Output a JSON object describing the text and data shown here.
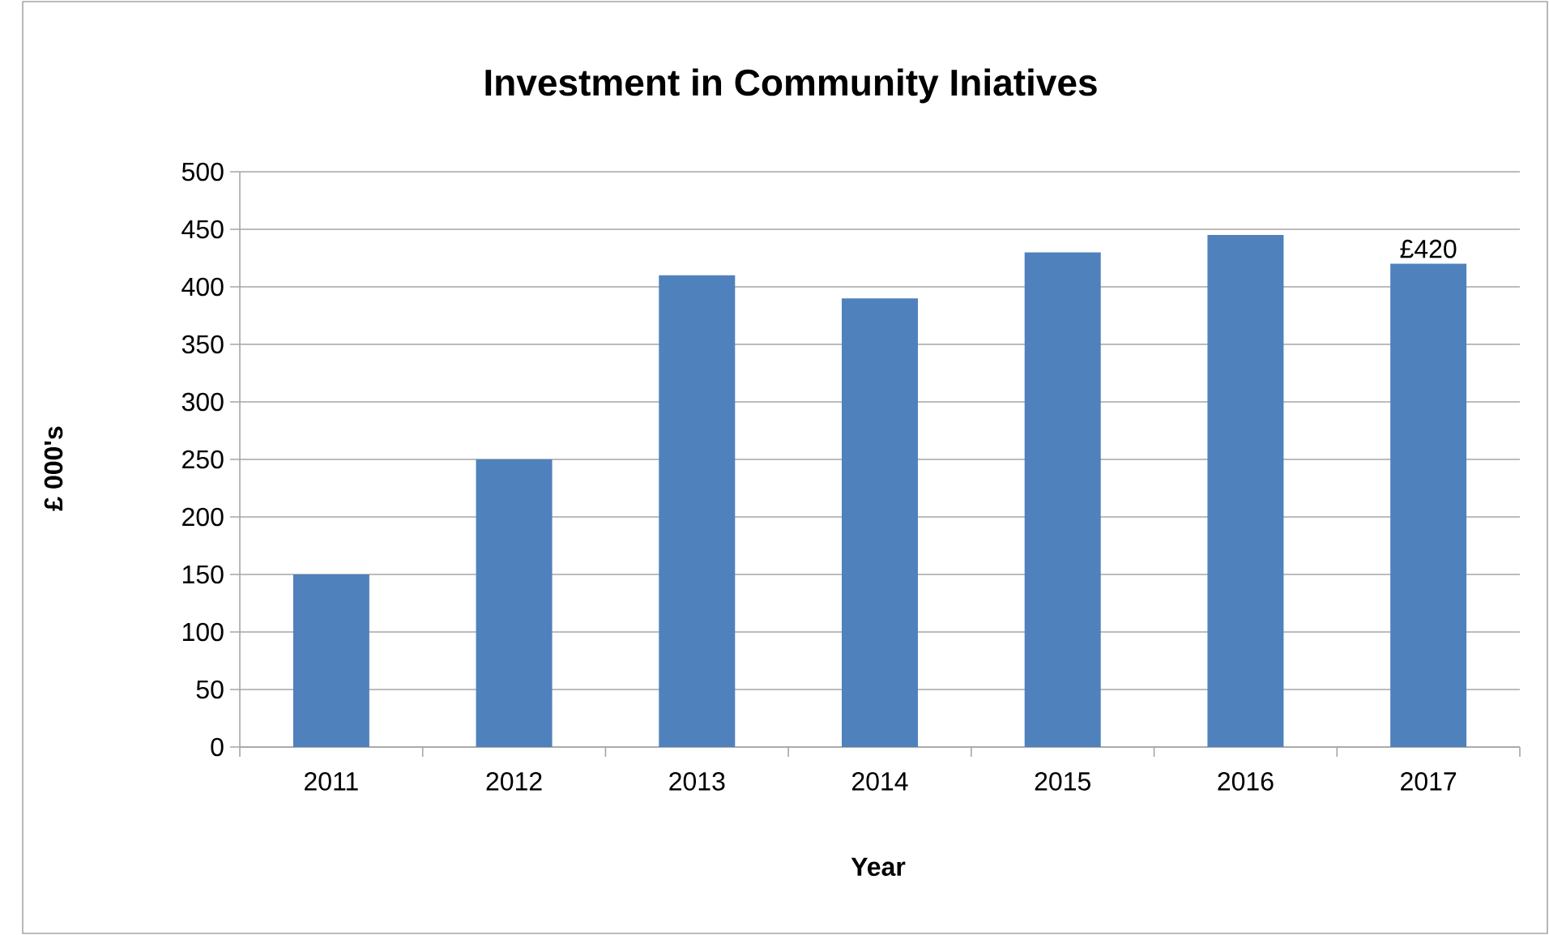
{
  "chart_data": {
    "type": "bar",
    "title": "Investment in Community Iniatives",
    "xlabel": "Year",
    "ylabel": "£ 000's",
    "categories": [
      "2011",
      "2012",
      "2013",
      "2014",
      "2015",
      "2016",
      "2017"
    ],
    "values": [
      150,
      250,
      410,
      390,
      430,
      445,
      420
    ],
    "value_labels": [
      null,
      null,
      null,
      null,
      null,
      null,
      "£420"
    ],
    "color": "#4f81bd",
    "ylim": [
      0,
      500
    ],
    "yticks": [
      0,
      50,
      100,
      150,
      200,
      250,
      300,
      350,
      400,
      450,
      500
    ],
    "grid": "y"
  }
}
